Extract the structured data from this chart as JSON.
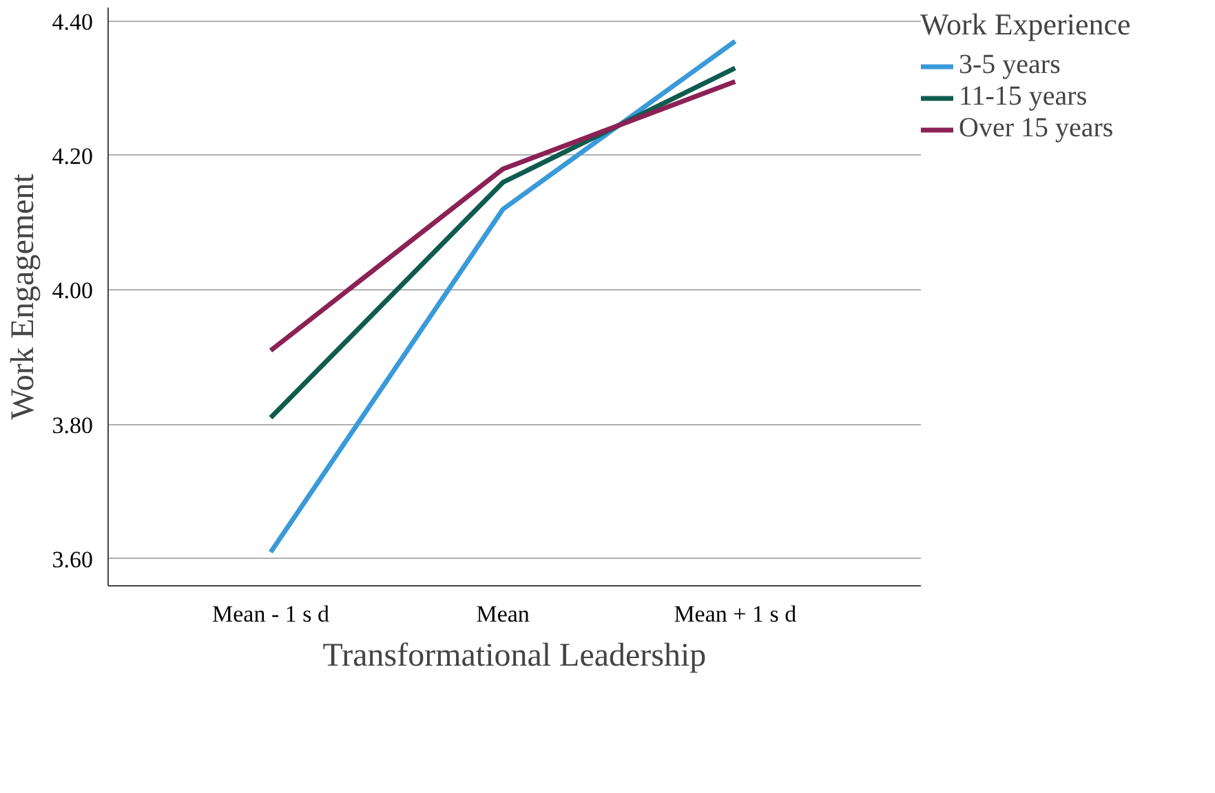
{
  "chart_data": {
    "type": "line",
    "xlabel": "Transformational Leadership",
    "ylabel": "Work Engagement",
    "legend_title": "Work Experience",
    "categories": [
      "Mean - 1 s d",
      "Mean",
      "Mean + 1 s d"
    ],
    "series": [
      {
        "name": "3-5 years",
        "color": "#3a9ad9",
        "values": [
          3.61,
          4.12,
          4.37
        ]
      },
      {
        "name": "11-15 years",
        "color": "#0f5c4f",
        "values": [
          3.81,
          4.16,
          4.33
        ]
      },
      {
        "name": "Over 15 years",
        "color": "#8c2155",
        "values": [
          3.91,
          4.18,
          4.31
        ]
      }
    ],
    "ylim": [
      3.56,
      4.42
    ],
    "yticks": [
      {
        "value": 3.6,
        "label": "3.60"
      },
      {
        "value": 3.8,
        "label": "3.80"
      },
      {
        "value": 4.0,
        "label": "4.00"
      },
      {
        "value": 4.2,
        "label": "4.20"
      },
      {
        "value": 4.4,
        "label": "4.40"
      }
    ],
    "grid": "y",
    "legend": "top right",
    "marker": "none",
    "line_style": "solid"
  }
}
